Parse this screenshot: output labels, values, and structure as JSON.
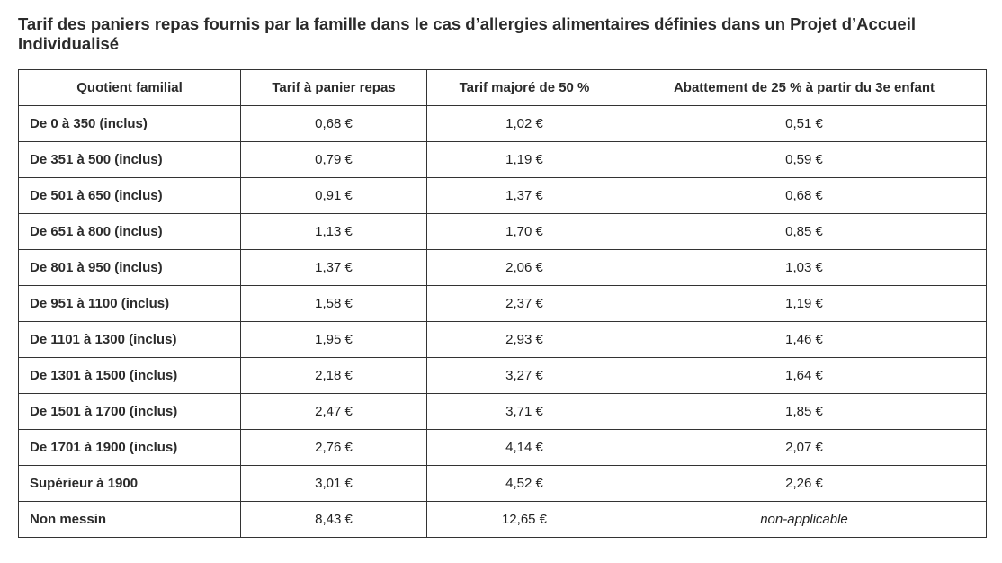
{
  "title": "Tarif des paniers repas fournis par la famille dans le cas d’allergies alimentaires définies dans un Projet d’Accueil Individualisé",
  "table": {
    "headers": [
      "Quotient familial",
      "Tarif à panier repas",
      "Tarif majoré de 50 %",
      "Abattement de 25 % à partir du 3e enfant"
    ],
    "rows": [
      [
        "De 0 à 350 (inclus)",
        "0,68 €",
        "1,02 €",
        "0,51 €"
      ],
      [
        "De 351 à 500 (inclus)",
        "0,79 €",
        "1,19 €",
        "0,59 €"
      ],
      [
        "De 501 à 650 (inclus)",
        "0,91 €",
        "1,37 €",
        "0,68 €"
      ],
      [
        "De 651 à 800 (inclus)",
        "1,13 €",
        "1,70 €",
        "0,85 €"
      ],
      [
        "De 801 à 950 (inclus)",
        "1,37 €",
        "2,06 €",
        "1,03 €"
      ],
      [
        "De 951 à 1100 (inclus)",
        "1,58 €",
        "2,37 €",
        "1,19 €"
      ],
      [
        "De 1101 à 1300 (inclus)",
        "1,95 €",
        "2,93 €",
        "1,46 €"
      ],
      [
        "De 1301 à 1500 (inclus)",
        "2,18 €",
        "3,27 €",
        "1,64 €"
      ],
      [
        "De 1501 à 1700 (inclus)",
        "2,47 €",
        "3,71 €",
        "1,85 €"
      ],
      [
        "De 1701 à 1900 (inclus)",
        "2,76 €",
        "4,14 €",
        "2,07 €"
      ],
      [
        "Supérieur à 1900",
        "3,01 €",
        "4,52 €",
        "2,26 €"
      ],
      [
        "Non messin",
        "8,43 €",
        "12,65 €",
        "non-applicable"
      ]
    ]
  }
}
